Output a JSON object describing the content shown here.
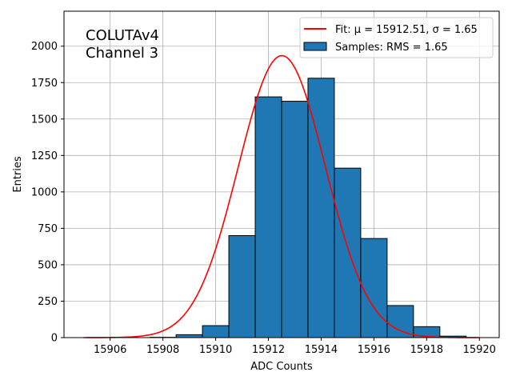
{
  "chart_data": {
    "type": "bar",
    "bin_width": 1,
    "bins": [
      {
        "x": 15905,
        "value": 0
      },
      {
        "x": 15906,
        "value": 0
      },
      {
        "x": 15907,
        "value": 2
      },
      {
        "x": 15908,
        "value": 20
      },
      {
        "x": 15909,
        "value": 82
      },
      {
        "x": 15910,
        "value": 700
      },
      {
        "x": 15911,
        "value": 1652
      },
      {
        "x": 15912,
        "value": 1622
      },
      {
        "x": 15913,
        "value": 1780
      },
      {
        "x": 15914,
        "value": 1163
      },
      {
        "x": 15915,
        "value": 680
      },
      {
        "x": 15916,
        "value": 220
      },
      {
        "x": 15917,
        "value": 75
      },
      {
        "x": 15918,
        "value": 10
      },
      {
        "x": 15919,
        "value": 0
      }
    ],
    "fit": {
      "mu": 15912.51,
      "sigma": 1.65,
      "peak": 1935,
      "x_range": [
        15905,
        15920
      ]
    },
    "xlabel": "ADC Counts",
    "ylabel": "Entries",
    "xlim": [
      15904.25,
      15920.75
    ],
    "ylim": [
      0,
      2240
    ],
    "xticks": [
      "15906",
      "15908",
      "15910",
      "15912",
      "15914",
      "15916",
      "15918",
      "15920"
    ],
    "yticks": [
      "0",
      "250",
      "500",
      "750",
      "1000",
      "1250",
      "1500",
      "1750",
      "2000"
    ],
    "annotation": [
      "COLUTAv4",
      "Channel 3"
    ],
    "legend": {
      "placement": "top-right",
      "entries": [
        {
          "label": "Fit: μ = 15912.51, σ = 1.65",
          "color": "#ff0000",
          "kind": "line"
        },
        {
          "label": "Samples: RMS = 1.65",
          "color": "#1f77b4",
          "kind": "patch"
        }
      ]
    },
    "grid": true,
    "colors": {
      "bars": "#1f77b4",
      "bar_edge": "#000000",
      "fit_line": "#ff0000"
    }
  }
}
